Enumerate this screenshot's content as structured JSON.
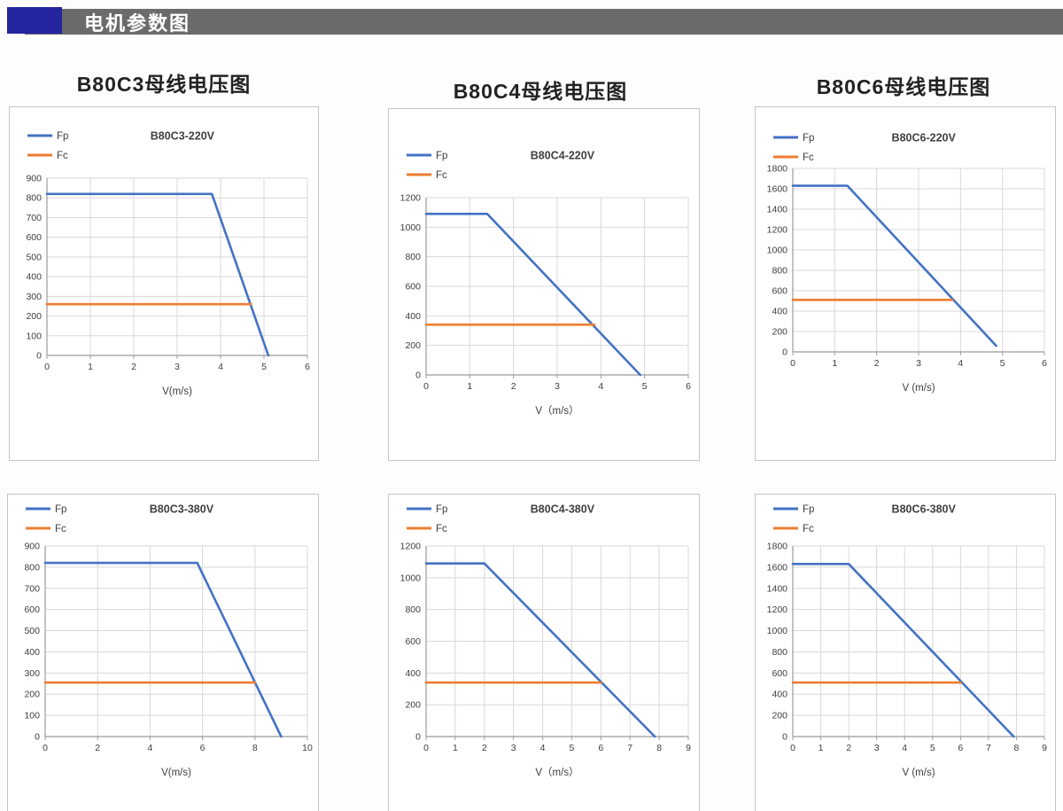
{
  "header": {
    "title": "电机参数图",
    "accent_color": "#24259f",
    "bar_color": "#6b6b6b",
    "title_color": "#ffffff"
  },
  "columns": [
    {
      "title": "B80C3母线电压图"
    },
    {
      "title": "B80C4母线电压图"
    },
    {
      "title": "B80C6母线电压图"
    }
  ],
  "palette": {
    "fp_color": "#4472C4",
    "fc_color": "#ED7D31",
    "grid_color": "#d8d8d8",
    "axis_color": "#9b9b9b",
    "label_color": "#3d3d3d"
  },
  "chart_data": [
    {
      "type": "line",
      "title": "B80C3-220V",
      "xlabel": "V(m/s)",
      "xlim": [
        0,
        6
      ],
      "x_step": 1,
      "ylim": [
        0,
        900
      ],
      "y_step": 100,
      "grid": true,
      "legend_position": "top-left",
      "series": [
        {
          "name": "Fp",
          "color": "#4472C4",
          "points": [
            [
              0,
              820
            ],
            [
              3.8,
              820
            ],
            [
              5.1,
              0
            ]
          ]
        },
        {
          "name": "Fc",
          "color": "#ED7D31",
          "points": [
            [
              0,
              260
            ],
            [
              4.7,
              260
            ]
          ]
        }
      ]
    },
    {
      "type": "line",
      "title": "B80C4-220V",
      "xlabel": "V（m/s）",
      "xlim": [
        0,
        6
      ],
      "x_step": 1,
      "ylim": [
        0,
        1200
      ],
      "y_step": 200,
      "grid": true,
      "legend_position": "top-left",
      "series": [
        {
          "name": "Fp",
          "color": "#4472C4",
          "points": [
            [
              0,
              1090
            ],
            [
              1.4,
              1090
            ],
            [
              4.9,
              0
            ]
          ]
        },
        {
          "name": "Fc",
          "color": "#ED7D31",
          "points": [
            [
              0,
              340
            ],
            [
              3.85,
              340
            ]
          ]
        }
      ]
    },
    {
      "type": "line",
      "title": "B80C6-220V",
      "xlabel": "V (m/s)",
      "xlim": [
        0,
        6
      ],
      "x_step": 1,
      "ylim": [
        0,
        1800
      ],
      "y_step": 200,
      "grid": true,
      "legend_position": "top-left",
      "series": [
        {
          "name": "Fp",
          "color": "#4472C4",
          "points": [
            [
              0,
              1630
            ],
            [
              1.3,
              1630
            ],
            [
              4.85,
              60
            ]
          ]
        },
        {
          "name": "Fc",
          "color": "#ED7D31",
          "points": [
            [
              0,
              510
            ],
            [
              3.8,
              510
            ]
          ]
        }
      ]
    },
    {
      "type": "line",
      "title": "B80C3-380V",
      "xlabel": "V(m/s)",
      "xlim": [
        0,
        10
      ],
      "x_step": 2,
      "ylim": [
        0,
        900
      ],
      "y_step": 100,
      "grid": true,
      "legend_position": "top-left",
      "series": [
        {
          "name": "Fp",
          "color": "#4472C4",
          "points": [
            [
              0,
              820
            ],
            [
              5.8,
              820
            ],
            [
              9,
              0
            ]
          ]
        },
        {
          "name": "Fc",
          "color": "#ED7D31",
          "points": [
            [
              0,
              255
            ],
            [
              8,
              255
            ]
          ]
        }
      ]
    },
    {
      "type": "line",
      "title": "B80C4-380V",
      "xlabel": "V（m/s）",
      "xlim": [
        0,
        9
      ],
      "x_step": 1,
      "ylim": [
        0,
        1200
      ],
      "y_step": 200,
      "grid": true,
      "legend_position": "top-left",
      "series": [
        {
          "name": "Fp",
          "color": "#4472C4",
          "points": [
            [
              0,
              1090
            ],
            [
              2,
              1090
            ],
            [
              7.85,
              0
            ]
          ]
        },
        {
          "name": "Fc",
          "color": "#ED7D31",
          "points": [
            [
              0,
              340
            ],
            [
              6,
              340
            ]
          ]
        }
      ]
    },
    {
      "type": "line",
      "title": "B80C6-380V",
      "xlabel": "V (m/s)",
      "xlim": [
        0,
        9
      ],
      "x_step": 1,
      "ylim": [
        0,
        1800
      ],
      "y_step": 200,
      "grid": true,
      "legend_position": "top-left",
      "series": [
        {
          "name": "Fp",
          "color": "#4472C4",
          "points": [
            [
              0,
              1630
            ],
            [
              2,
              1630
            ],
            [
              7.9,
              0
            ]
          ]
        },
        {
          "name": "Fc",
          "color": "#ED7D31",
          "points": [
            [
              0,
              510
            ],
            [
              6,
              510
            ]
          ]
        }
      ]
    }
  ]
}
